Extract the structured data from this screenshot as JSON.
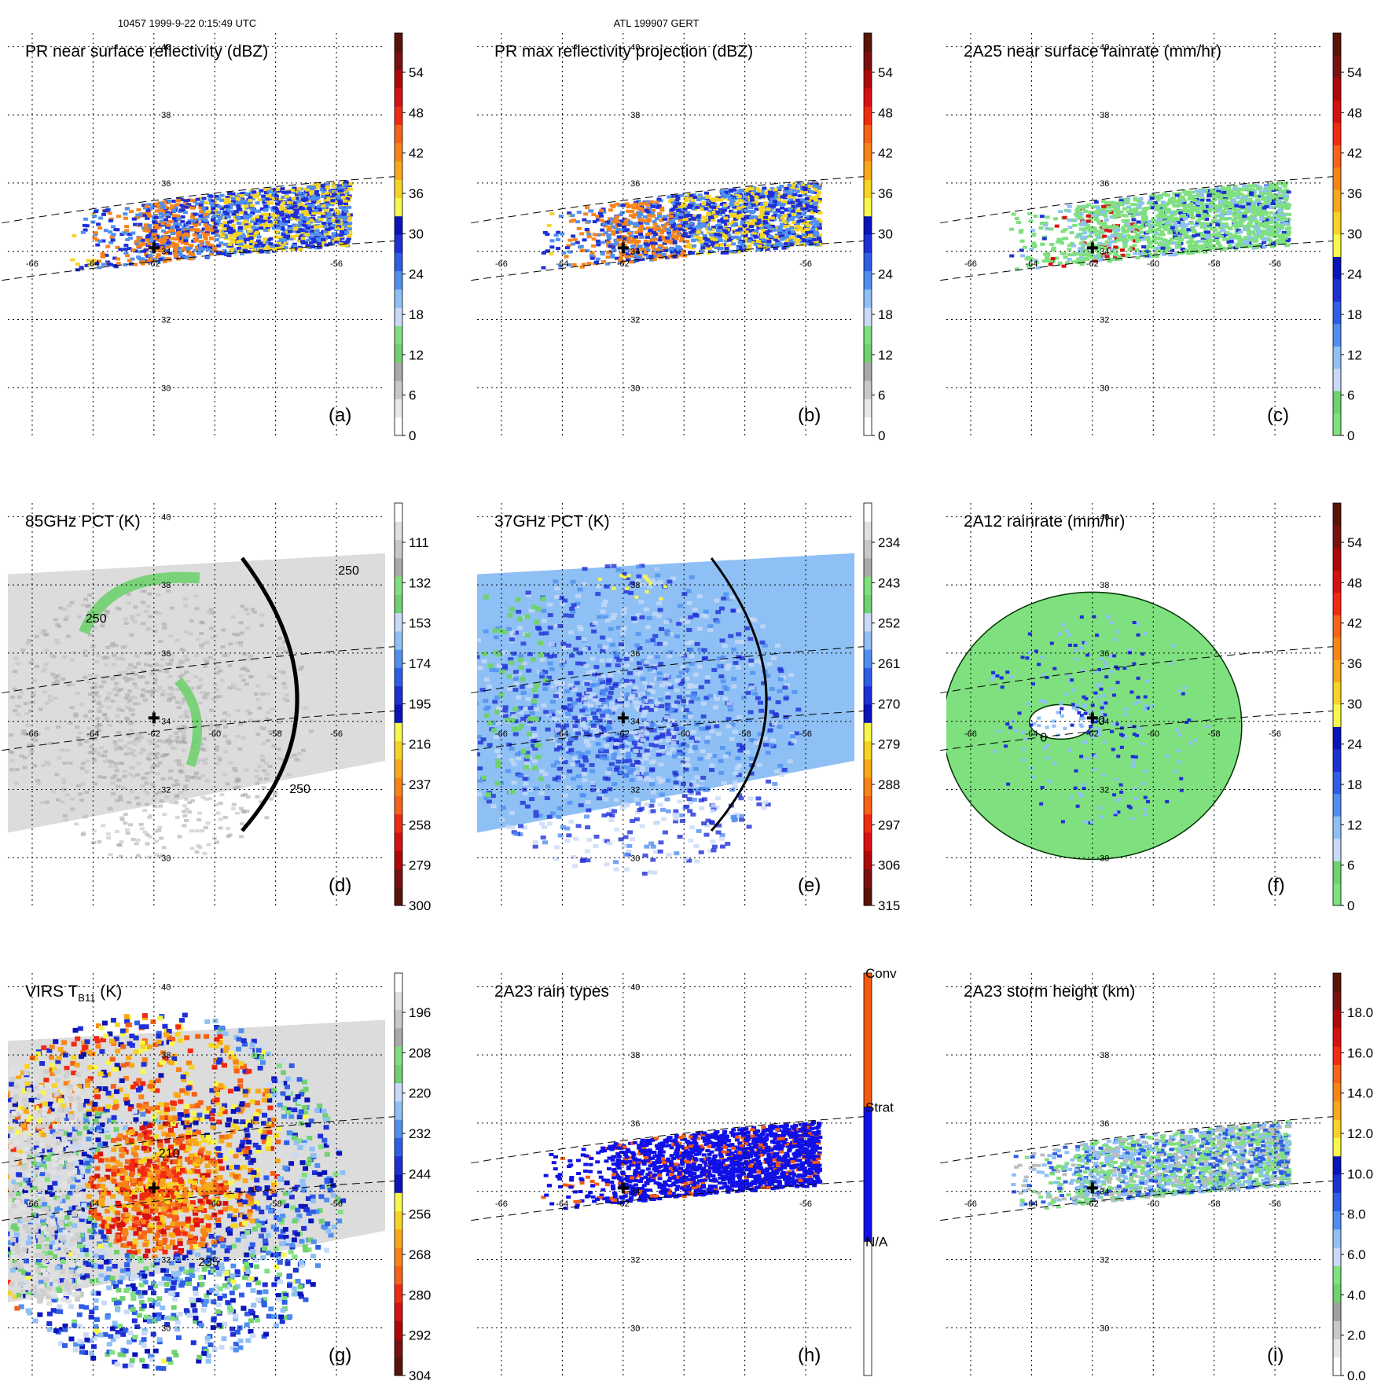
{
  "header": {
    "orbit_time": "10457 1999-9-22 0:15:49 UTC",
    "storm": "ATL 199907 GERT"
  },
  "chart_data": [
    {
      "id": "a",
      "type": "heatmap",
      "title": "PR near surface reflectivity (dBZ)",
      "panel_label": "(a)",
      "swath": "pr",
      "scheme": "refl",
      "colorbar_ticks": [
        "54",
        "48",
        "42",
        "36",
        "30",
        "24",
        "18",
        "12",
        "6",
        "0"
      ],
      "lon_labels": [
        "-66",
        "-64",
        "-62",
        "-56"
      ],
      "lat_labels": [
        "40",
        "38",
        "36",
        "34",
        "32",
        "30"
      ]
    },
    {
      "id": "b",
      "type": "heatmap",
      "title": "PR max reflectivity projection (dBZ)",
      "panel_label": "(b)",
      "swath": "pr",
      "scheme": "refl",
      "colorbar_ticks": [
        "54",
        "48",
        "42",
        "36",
        "30",
        "24",
        "18",
        "12",
        "6",
        "0"
      ],
      "lon_labels": [
        "-66",
        "-64",
        "-62",
        "-56"
      ],
      "lat_labels": [
        "40",
        "38",
        "36",
        "34",
        "32",
        "30"
      ]
    },
    {
      "id": "c",
      "type": "heatmap",
      "title": "2A25 near surface rainrate (mm/hr)",
      "panel_label": "(c)",
      "swath": "pr",
      "scheme": "rain",
      "colorbar_ticks": [
        "54",
        "48",
        "42",
        "36",
        "30",
        "24",
        "18",
        "12",
        "6",
        "0"
      ],
      "lon_labels": [
        "-66",
        "-64",
        "-62",
        "-60",
        "-58",
        "-56"
      ],
      "lat_labels": [
        "40",
        "38",
        "36",
        "34",
        "32",
        "30"
      ]
    },
    {
      "id": "d",
      "type": "heatmap",
      "title": "85GHz PCT (K)",
      "panel_label": "(d)",
      "swath": "tmi",
      "scheme": "pct85",
      "contours": [
        "250",
        "250",
        "250"
      ],
      "colorbar_ticks": [
        "111",
        "132",
        "153",
        "174",
        "195",
        "216",
        "237",
        "258",
        "279",
        "300"
      ],
      "lon_labels": [
        "-66",
        "-64",
        "-62",
        "-60",
        "-58",
        "-56"
      ],
      "lat_labels": [
        "40",
        "38",
        "36",
        "34",
        "32",
        "30"
      ]
    },
    {
      "id": "e",
      "type": "heatmap",
      "title": "37GHz PCT (K)",
      "panel_label": "(e)",
      "swath": "tmi",
      "scheme": "pct37",
      "colorbar_ticks": [
        "234",
        "243",
        "252",
        "261",
        "270",
        "279",
        "288",
        "297",
        "306",
        "315"
      ],
      "lon_labels": [
        "-66",
        "-64",
        "-62",
        "-60",
        "-58",
        "-56"
      ],
      "lat_labels": [
        "38",
        "36",
        "34",
        "32",
        "30"
      ]
    },
    {
      "id": "f",
      "type": "heatmap",
      "title": "2A12 rainrate (mm/hr)",
      "panel_label": "(f)",
      "swath": "tmi",
      "scheme": "rain12",
      "contours": [
        "0",
        "0"
      ],
      "colorbar_ticks": [
        "54",
        "48",
        "42",
        "36",
        "30",
        "24",
        "18",
        "12",
        "6",
        "0"
      ],
      "lon_labels": [
        "-66",
        "-64",
        "-62",
        "-60",
        "-58",
        "-56"
      ],
      "lat_labels": [
        "40",
        "38",
        "36",
        "34",
        "32",
        "30"
      ]
    },
    {
      "id": "g",
      "type": "heatmap",
      "title": "VIRS T",
      "title_sub": "B11",
      "title_tail": " (K)",
      "panel_label": "(g)",
      "swath": "virs",
      "scheme": "virs",
      "contours": [
        "210",
        "235"
      ],
      "colorbar_ticks": [
        "196",
        "208",
        "220",
        "232",
        "244",
        "256",
        "268",
        "280",
        "292",
        "304"
      ],
      "lon_labels": [
        "-66",
        "-64",
        "-60",
        "-58",
        "-56"
      ],
      "lat_labels": [
        "40",
        "38",
        "32",
        "30"
      ]
    },
    {
      "id": "h",
      "type": "heatmap",
      "title": "2A23 rain types",
      "panel_label": "(h)",
      "swath": "pr",
      "scheme": "types",
      "category_labels": [
        "Conv",
        "Strat",
        "N/A"
      ],
      "lon_labels": [
        "-66",
        "-64",
        "-62",
        "-56"
      ],
      "lat_labels": [
        "40",
        "38",
        "36",
        "34",
        "32",
        "30"
      ]
    },
    {
      "id": "i",
      "type": "heatmap",
      "title": "2A23 storm height (km)",
      "panel_label": "(i)",
      "swath": "pr",
      "scheme": "height",
      "colorbar_ticks": [
        "18.0",
        "16.0",
        "14.0",
        "12.0",
        "10.0",
        "8.0",
        "6.0",
        "4.0",
        "2.0",
        "0.0"
      ],
      "lon_labels": [
        "-66",
        "-64",
        "-62",
        "-60",
        "-58",
        "-56"
      ],
      "lat_labels": [
        "38",
        "36",
        "34",
        "32",
        "30"
      ]
    }
  ],
  "palettes": {
    "refl": [
      "#ffffff",
      "#e8e8e8",
      "#c8c8c8",
      "#aaaaaa",
      "#6fd16f",
      "#7fe07f",
      "#c8daf7",
      "#8ec0f5",
      "#4f8ff0",
      "#2f5ee6",
      "#1f2fd8",
      "#0a14b8",
      "#f8f84a",
      "#f5d422",
      "#f8a818",
      "#f88418",
      "#f56218",
      "#f22a12",
      "#d81010",
      "#b00808",
      "#7a1010",
      "#5a1408"
    ],
    "rain": [
      "#7fe07f",
      "#6fd16f",
      "#c8daf7",
      "#8ec0f5",
      "#4f8ff0",
      "#2f5ee6",
      "#1f2fd8",
      "#0a14b8",
      "#f8f84a",
      "#f5d422",
      "#f8a818",
      "#f88418",
      "#f56218",
      "#f22a12",
      "#d81010",
      "#b00808",
      "#7a1010",
      "#5a1408"
    ],
    "pct85": [
      "#5a1408",
      "#7a1010",
      "#b00808",
      "#d81010",
      "#f22a12",
      "#f56218",
      "#f88418",
      "#f8a818",
      "#f5d422",
      "#f8f84a",
      "#0a14b8",
      "#1f2fd8",
      "#2f5ee6",
      "#4f8ff0",
      "#8ec0f5",
      "#c8daf7",
      "#6fd16f",
      "#7fe07f",
      "#aaaaaa",
      "#c8c8c8",
      "#e0e0e0",
      "#ffffff"
    ],
    "types": [
      "#ffffff",
      "#1010e8",
      "#f55a10"
    ],
    "height": [
      "#ffffff",
      "#e6e6e6",
      "#c8c8c8",
      "#a0a0a0",
      "#6fd16f",
      "#7fe07f",
      "#c8daf7",
      "#8ec0f5",
      "#4f8ff0",
      "#2f5ee6",
      "#1f2fd8",
      "#0a14b8",
      "#f8f84a",
      "#f5d422",
      "#f8a818",
      "#f88418",
      "#f56218",
      "#f22a12",
      "#d81010",
      "#b00808",
      "#7a1010",
      "#5a1408"
    ]
  }
}
